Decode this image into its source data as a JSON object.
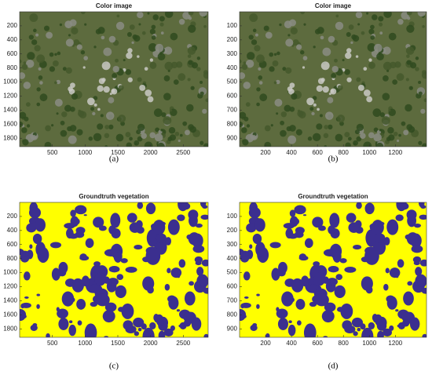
{
  "chart_data": [
    {
      "type": "image",
      "title": "Color image",
      "palette": [
        "#5d6b3e",
        "#2f4a1f",
        "#8a8c82",
        "#c9c9c4",
        "#44582c"
      ],
      "xlim": [
        0,
        2880
      ],
      "ylim": [
        0,
        1920
      ],
      "y_reversed": true,
      "xticks": [
        500,
        1000,
        1500,
        2000,
        2500
      ],
      "yticks": [
        200,
        400,
        600,
        800,
        1000,
        1200,
        1400,
        1600,
        1800
      ]
    },
    {
      "type": "image",
      "title": "Color image",
      "palette": [
        "#5d6b3e",
        "#2f4a1f",
        "#8a8c82",
        "#c9c9c4",
        "#44582c"
      ],
      "xlim": [
        0,
        1440
      ],
      "ylim": [
        0,
        960
      ],
      "y_reversed": true,
      "xticks": [
        200,
        400,
        600,
        800,
        1000,
        1200
      ],
      "yticks": [
        100,
        200,
        300,
        400,
        500,
        600,
        700,
        800,
        900
      ]
    },
    {
      "type": "image",
      "title": "Groundtruth vegetation",
      "palette": [
        "#ffff00",
        "#3b2f8f"
      ],
      "xlim": [
        0,
        2880
      ],
      "ylim": [
        0,
        1920
      ],
      "y_reversed": true,
      "xticks": [
        500,
        1000,
        1500,
        2000,
        2500
      ],
      "yticks": [
        200,
        400,
        600,
        800,
        1000,
        1200,
        1400,
        1600,
        1800
      ]
    },
    {
      "type": "image",
      "title": "Groundtruth vegetation",
      "palette": [
        "#ffff00",
        "#3b2f8f"
      ],
      "xlim": [
        0,
        1440
      ],
      "ylim": [
        0,
        960
      ],
      "y_reversed": true,
      "xticks": [
        200,
        400,
        600,
        800,
        1000,
        1200
      ],
      "yticks": [
        100,
        200,
        300,
        400,
        500,
        600,
        700,
        800,
        900
      ]
    }
  ],
  "captions": [
    "(a)",
    "(b)",
    "(c)",
    "(d)"
  ]
}
